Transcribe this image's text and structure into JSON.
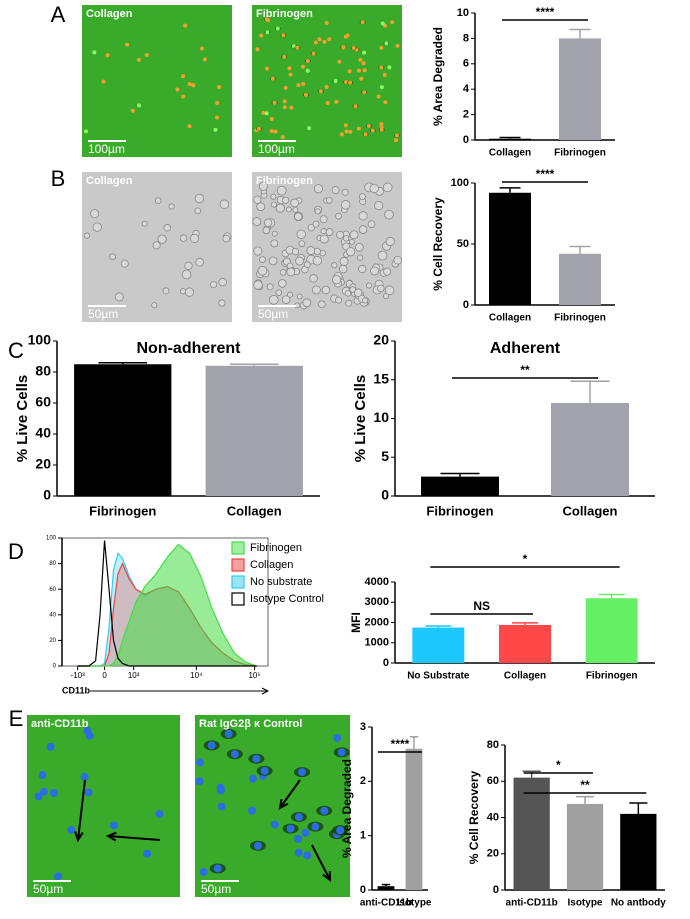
{
  "figure": {
    "panels": [
      "A",
      "B",
      "C",
      "D",
      "E"
    ],
    "images": [
      {
        "label": "Collagen",
        "scale": "100µm"
      },
      {
        "label": "Fibrinogen",
        "scale": "100µm"
      },
      {
        "label": "Collagen",
        "scale": "50µm"
      },
      {
        "label": "Fibrinogen",
        "scale": "50µm"
      },
      {
        "label": "anti-CD11b",
        "scale": "50µm"
      },
      {
        "label": "Rat IgG2β κ Control",
        "scale": "50µm"
      }
    ]
  },
  "chart_data": [
    {
      "type": "bar",
      "ylabel": "% Area Degraded",
      "categories": [
        "Collagen",
        "Fibrinogen"
      ],
      "values": [
        0.1,
        8.0
      ],
      "errors": [
        0.1,
        0.7
      ],
      "colors": [
        "#000000",
        "#a2a2aa"
      ],
      "ylim": [
        0,
        10
      ],
      "yticks": [
        0,
        2,
        4,
        6,
        8,
        10
      ],
      "annotations": [
        "****"
      ]
    },
    {
      "type": "bar",
      "ylabel": "% Cell Recovery",
      "categories": [
        "Collagen",
        "Fibrinogen"
      ],
      "values": [
        92,
        42
      ],
      "errors": [
        4,
        6
      ],
      "colors": [
        "#000000",
        "#a2a2aa"
      ],
      "ylim": [
        0,
        100
      ],
      "yticks": [
        0,
        50,
        100
      ],
      "annotations": [
        "****"
      ]
    },
    {
      "type": "bar",
      "title": "Non-adherent",
      "ylabel": "% Live Cells",
      "categories": [
        "Fibrinogen",
        "Collagen"
      ],
      "values": [
        85,
        84
      ],
      "errors": [
        1,
        1
      ],
      "colors": [
        "#000000",
        "#a2a2aa"
      ],
      "ylim": [
        0,
        100
      ],
      "yticks": [
        0,
        20,
        40,
        60,
        80,
        100
      ],
      "annotations": []
    },
    {
      "type": "bar",
      "title": "Adherent",
      "ylabel": "% Live Cells",
      "categories": [
        "Fibrinogen",
        "Collagen"
      ],
      "values": [
        2.5,
        12
      ],
      "errors": [
        0.4,
        2.8
      ],
      "colors": [
        "#000000",
        "#a2a2aa"
      ],
      "ylim": [
        0,
        20
      ],
      "yticks": [
        0,
        5,
        10,
        15,
        20
      ],
      "annotations": [
        "**"
      ]
    },
    {
      "type": "area",
      "xlabel": "CD11b",
      "x": [
        1.0,
        1.5,
        1.8,
        2.0,
        2.2,
        2.4,
        2.6,
        2.8,
        3.0,
        3.3,
        3.6,
        4.0,
        4.5,
        5.0,
        5.5,
        6.0,
        6.5,
        7.0,
        7.5,
        8.0,
        8.5,
        9.0
      ],
      "series": [
        {
          "name": "Fibrinogen",
          "color": "#44dd44",
          "values": [
            0,
            0,
            0,
            0,
            0,
            0,
            2,
            8,
            20,
            35,
            50,
            62,
            72,
            85,
            95,
            88,
            70,
            45,
            25,
            10,
            3,
            0
          ]
        },
        {
          "name": "Collagen",
          "color": "#ee4444",
          "values": [
            0,
            0,
            0,
            0,
            0,
            10,
            45,
            72,
            80,
            68,
            60,
            56,
            60,
            62,
            58,
            45,
            30,
            18,
            10,
            4,
            1,
            0
          ]
        },
        {
          "name": "No substrate",
          "color": "#33ccee",
          "values": [
            0,
            0,
            0,
            0,
            2,
            30,
            75,
            88,
            84,
            70,
            60,
            55,
            60,
            62,
            58,
            45,
            30,
            18,
            10,
            4,
            1,
            0
          ]
        },
        {
          "name": "Isotype Control",
          "color": "#000000",
          "values": [
            0,
            0,
            4,
            40,
            98,
            60,
            20,
            6,
            2,
            0,
            0,
            0,
            0,
            0,
            0,
            0,
            0,
            0,
            0,
            0,
            0,
            0
          ]
        }
      ],
      "xlim": [
        0.3,
        9.5
      ],
      "xticks": [
        {
          "value": 1,
          "label": "-10³"
        },
        {
          "value": 2.2,
          "label": "0"
        },
        {
          "value": 3.5,
          "label": "10³"
        },
        {
          "value": 6.3,
          "label": "10⁴"
        },
        {
          "value": 8.9,
          "label": "10⁵"
        }
      ],
      "ylim": [
        0,
        100
      ],
      "yticks": [
        0,
        20,
        40,
        60,
        80,
        100
      ]
    },
    {
      "type": "bar",
      "ylabel": "MFI",
      "categories": [
        "No Substrate",
        "Collagen",
        "Fibrinogen"
      ],
      "values": [
        1750,
        1880,
        3200
      ],
      "errors": [
        80,
        100,
        180
      ],
      "colors": [
        "#1ec8ff",
        "#ff4848",
        "#66f066"
      ],
      "ylim": [
        0,
        4000
      ],
      "yticks": [
        0,
        1000,
        2000,
        3000,
        4000
      ],
      "annotations": [
        "*",
        "NS"
      ]
    },
    {
      "type": "bar",
      "ylabel": "% Area Degraded",
      "categories": [
        "anti-CD11b",
        "Isotype"
      ],
      "values": [
        0.07,
        2.6
      ],
      "errors": [
        0.03,
        0.22
      ],
      "colors": [
        "#000000",
        "#a0a0a0"
      ],
      "ylim": [
        0,
        3
      ],
      "yticks": [
        0,
        1,
        2,
        3
      ],
      "annotations": [
        "****"
      ]
    },
    {
      "type": "bar",
      "ylabel": "% Cell Recovery",
      "categories": [
        "anti-CD11b",
        "Isotype",
        "No antbody"
      ],
      "values": [
        62,
        47.5,
        42
      ],
      "errors": [
        3.5,
        4,
        6
      ],
      "colors": [
        "#555555",
        "#a0a0a0",
        "#000000"
      ],
      "ylim": [
        0,
        80
      ],
      "yticks": [
        0,
        20,
        40,
        60,
        80
      ],
      "annotations": [
        "*",
        "**"
      ]
    }
  ]
}
